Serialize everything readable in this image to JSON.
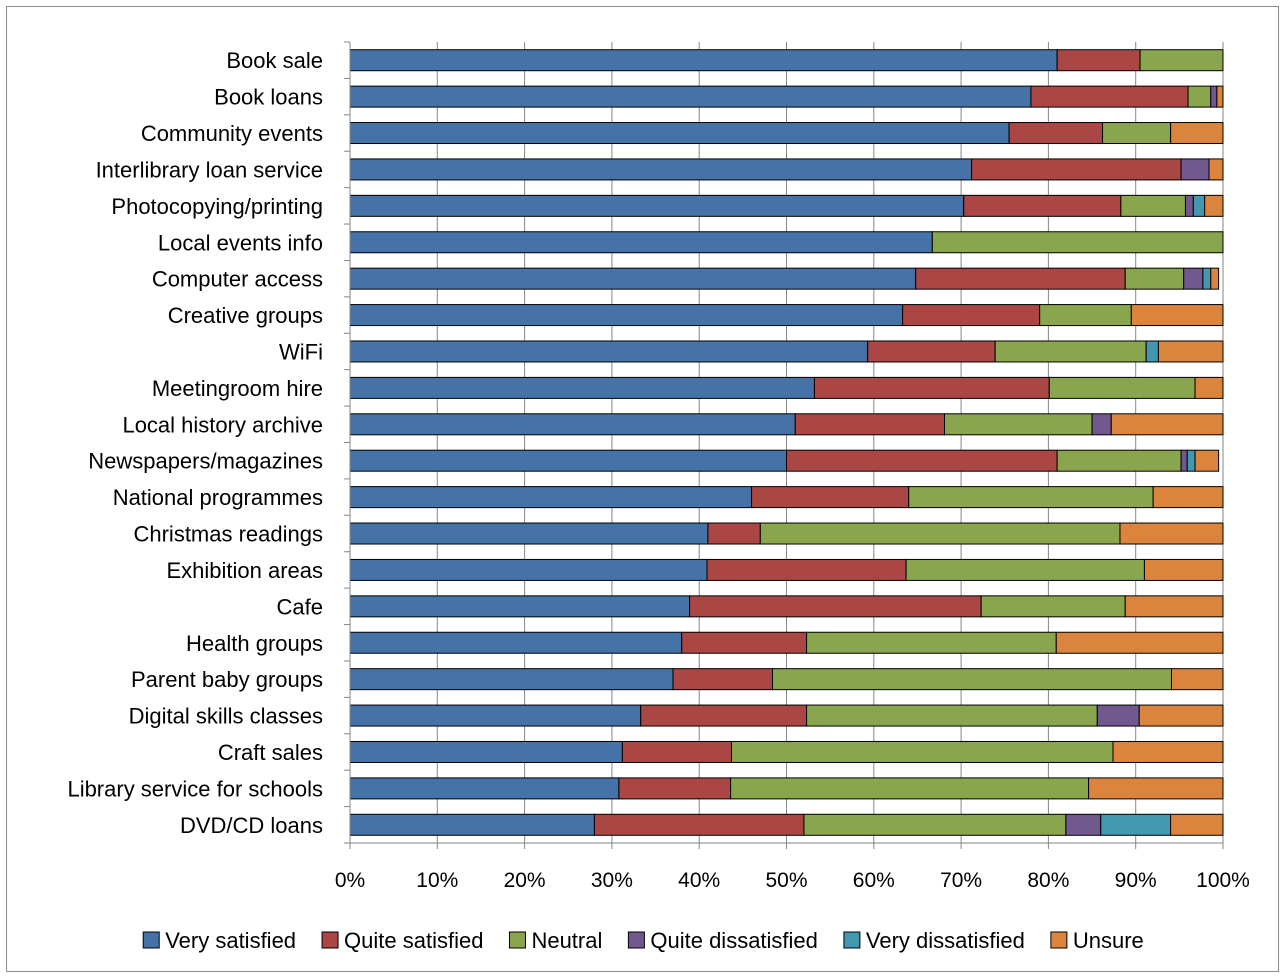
{
  "chart_data": {
    "type": "bar",
    "orientation": "horizontal",
    "stacked": true,
    "normalized_percent": true,
    "title": "",
    "xlabel": "",
    "ylabel": "",
    "xlim": [
      0,
      100
    ],
    "x_ticks": [
      "0%",
      "10%",
      "20%",
      "30%",
      "40%",
      "50%",
      "60%",
      "70%",
      "80%",
      "90%",
      "100%"
    ],
    "grid": "vertical major gridlines",
    "legend_position": "bottom",
    "categories": [
      "Book sale",
      "Book loans",
      "Community events",
      "Interlibrary loan service",
      "Photocopying/printing",
      "Local events info",
      "Computer access",
      "Creative groups",
      "WiFi",
      "Meetingroom hire",
      "Local history archive",
      "Newspapers/magazines",
      "National programmes",
      "Christmas readings",
      "Exhibition areas",
      "Cafe",
      "Health groups",
      "Parent baby groups",
      "Digital skills classes",
      "Craft sales",
      "Library service for schools",
      "DVD/CD loans"
    ],
    "series": [
      {
        "name": "Very satisfied",
        "color": "#4572A7",
        "values": [
          81,
          78,
          75.5,
          71.2,
          70.3,
          66.7,
          64.8,
          63.3,
          59.3,
          53.2,
          51,
          50,
          46,
          41,
          40.9,
          38.9,
          38,
          37,
          33.3,
          31.2,
          30.8,
          28
        ]
      },
      {
        "name": "Quite satisfied",
        "color": "#AA4643",
        "values": [
          9.5,
          18,
          10.7,
          24,
          18,
          0,
          24,
          15.7,
          14.6,
          26.9,
          17.1,
          31,
          18,
          6,
          22.8,
          33.4,
          14.3,
          11.4,
          19,
          12.5,
          12.8,
          24
        ]
      },
      {
        "name": "Neutral",
        "color": "#89A54E",
        "values": [
          9.5,
          2.6,
          7.8,
          0,
          7.4,
          33.3,
          6.7,
          10.5,
          17.3,
          16.7,
          16.9,
          14.2,
          28,
          41.2,
          27.3,
          16.5,
          28.6,
          45.7,
          33.3,
          43.7,
          41,
          30
        ]
      },
      {
        "name": "Quite dissatisfied",
        "color": "#71588F",
        "values": [
          0,
          0.7,
          0,
          3.2,
          0.9,
          0,
          2.2,
          0,
          0,
          0,
          2.2,
          0.7,
          0,
          0,
          0,
          0,
          0,
          0,
          4.8,
          0,
          0,
          4
        ]
      },
      {
        "name": "Very dissatisfied",
        "color": "#4198AF",
        "values": [
          0,
          0,
          0,
          0,
          1.3,
          0,
          0.9,
          0,
          1.4,
          0,
          0,
          0.9,
          0,
          0,
          0,
          0,
          0,
          0,
          0,
          0,
          0,
          8
        ]
      },
      {
        "name": "Unsure",
        "color": "#DB843D",
        "values": [
          0,
          0.7,
          6,
          1.6,
          2.1,
          0,
          0.9,
          10.5,
          7.4,
          3.2,
          12.8,
          2.7,
          8,
          11.8,
          9,
          11.2,
          19.1,
          5.9,
          9.6,
          12.6,
          15.4,
          6
        ]
      }
    ]
  }
}
